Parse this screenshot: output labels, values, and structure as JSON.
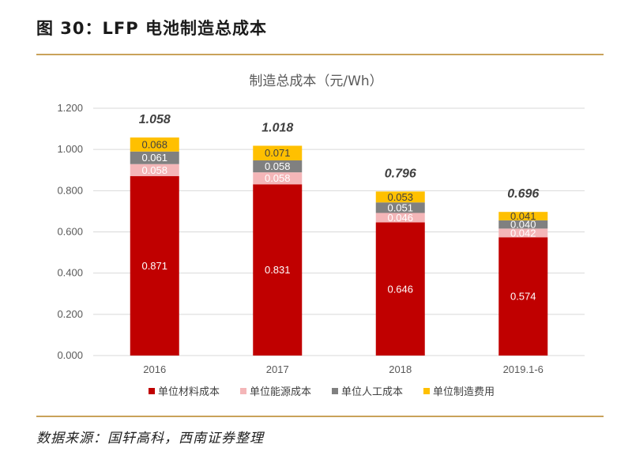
{
  "figure_title": "图 30：LFP 电池制造总成本",
  "source": "数据来源：国轩高科，西南证券整理",
  "colors": {
    "material": "#c00000",
    "energy": "#f4b6b8",
    "labor": "#808080",
    "manufacturing": "#ffc000",
    "rule": "#c9a25a",
    "grid": "#d9d9d9"
  },
  "chart_data": {
    "type": "bar",
    "stacked": true,
    "title": "制造总成本（元/Wh）",
    "categories": [
      "2016",
      "2017",
      "2018",
      "2019.1-6"
    ],
    "series": [
      {
        "name": "单位材料成本",
        "color_key": "material",
        "label_color": "#ffffff",
        "values": [
          0.871,
          0.831,
          0.646,
          0.574
        ]
      },
      {
        "name": "单位能源成本",
        "color_key": "energy",
        "label_color": "#ffffff",
        "values": [
          0.058,
          0.058,
          0.046,
          0.042
        ]
      },
      {
        "name": "单位人工成本",
        "color_key": "labor",
        "label_color": "#ffffff",
        "values": [
          0.061,
          0.058,
          0.051,
          0.04
        ]
      },
      {
        "name": "单位制造费用",
        "color_key": "manufacturing",
        "label_color": "#404040",
        "values": [
          0.068,
          0.071,
          0.053,
          0.041
        ]
      }
    ],
    "value_labels": [
      [
        "0.871",
        "0.831",
        "0.646",
        "0.574"
      ],
      [
        "0.058",
        "0.058",
        "0.046",
        "0.042"
      ],
      [
        "0.061",
        "0.058",
        "0.051",
        "0.040"
      ],
      [
        "0.068",
        "0.071",
        "0.053",
        "0.041"
      ]
    ],
    "totals": [
      "1.058",
      "1.018",
      "0.796",
      "0.696"
    ],
    "ylim": [
      0,
      1.2
    ],
    "yticks": [
      "0.000",
      "0.200",
      "0.400",
      "0.600",
      "0.800",
      "1.000",
      "1.200"
    ],
    "grid": true,
    "legend_position": "bottom"
  }
}
